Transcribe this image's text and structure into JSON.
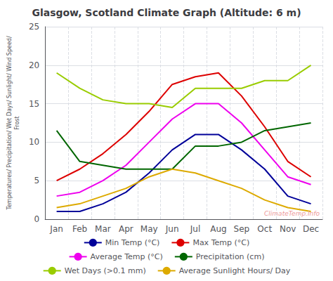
{
  "chart_data": {
    "type": "line",
    "title": "Glasgow, Scotland Climate Graph (Altitude: 6 m)",
    "y_label": "Temperatures/ Precipitation/ Wet Days/ Sunlight/ Wind Speed/\nFrost",
    "categories": [
      "Jan",
      "Feb",
      "Mar",
      "Apr",
      "May",
      "Jun",
      "Jul",
      "Aug",
      "Sep",
      "Oct",
      "Nov",
      "Dec"
    ],
    "series": [
      {
        "name": "Min Temp (°C)",
        "color": "#000099",
        "values": [
          1.0,
          1.0,
          2.0,
          3.5,
          6.0,
          9.0,
          11.0,
          11.0,
          9.0,
          6.5,
          3.0,
          2.0
        ]
      },
      {
        "name": "Max Temp (°C)",
        "color": "#DD0000",
        "values": [
          5.0,
          6.5,
          8.5,
          11.0,
          14.0,
          17.5,
          18.5,
          19.0,
          16.0,
          12.0,
          7.5,
          5.5
        ]
      },
      {
        "name": "Average Temp (°C)",
        "color": "#EE00EE",
        "values": [
          3.0,
          3.5,
          5.0,
          7.0,
          10.0,
          13.0,
          15.0,
          15.0,
          12.5,
          9.0,
          5.5,
          4.5
        ]
      },
      {
        "name": "Precipitation (cm)",
        "color": "#006600",
        "values": [
          11.5,
          7.5,
          7.0,
          6.5,
          6.5,
          6.5,
          9.5,
          9.5,
          10.0,
          11.5,
          12.0,
          12.5
        ]
      },
      {
        "name": "Wet Days (>0.1 mm)",
        "color": "#99CC00",
        "values": [
          19.0,
          17.0,
          15.5,
          15.0,
          15.0,
          14.5,
          17.0,
          17.0,
          17.0,
          18.0,
          18.0,
          20.0
        ]
      },
      {
        "name": "Average Sunlight Hours/ Day",
        "color": "#DDAA00",
        "values": [
          1.5,
          2.0,
          3.0,
          4.0,
          5.5,
          6.5,
          6.0,
          5.0,
          4.0,
          2.5,
          1.5,
          1.0
        ]
      }
    ],
    "ylim": [
      0,
      25
    ],
    "yticks": [
      0,
      5,
      10,
      15,
      20,
      25
    ],
    "grid": true,
    "legend": "bottom",
    "annotations": [
      "ClimateTemp.Info"
    ]
  }
}
